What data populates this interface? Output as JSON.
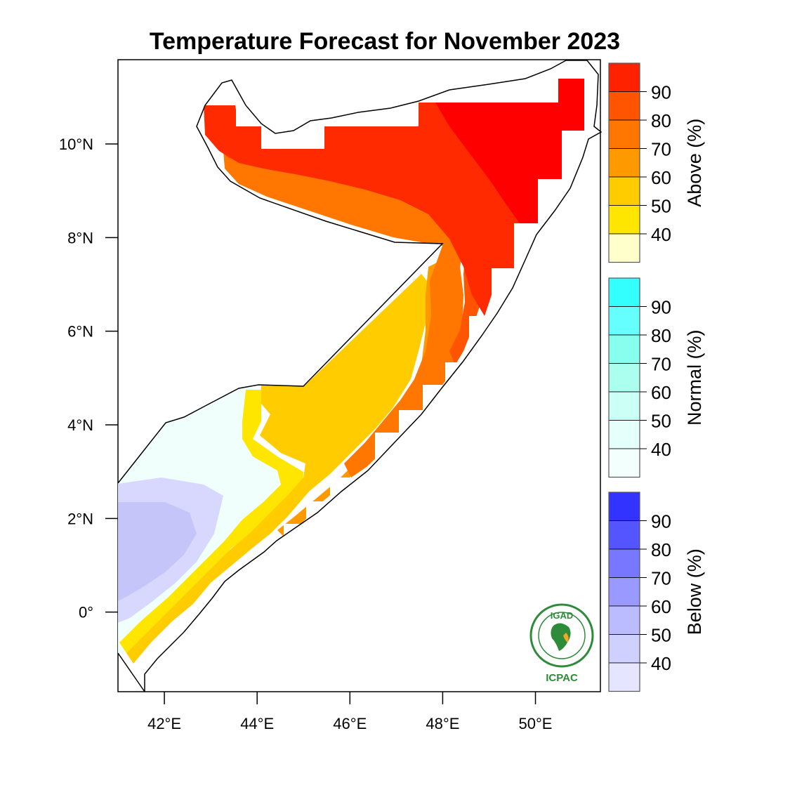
{
  "title": "Temperature Forecast for November 2023",
  "map": {
    "lon_range": [
      41.0,
      51.4
    ],
    "lat_range": [
      -1.7,
      11.8
    ],
    "lon_ticks": [
      "42°E",
      "44°E",
      "46°E",
      "48°E",
      "50°E"
    ],
    "lon_tick_values": [
      42,
      44,
      46,
      48,
      50
    ],
    "lat_ticks": [
      "10°N",
      "8°N",
      "6°N",
      "4°N",
      "2°N",
      "0°"
    ],
    "lat_tick_values": [
      10,
      8,
      6,
      4,
      2,
      0
    ],
    "regions": [
      {
        "category": "Above",
        "probability": "90"
      },
      {
        "category": "Above",
        "probability": "80"
      },
      {
        "category": "Above",
        "probability": "70"
      },
      {
        "category": "Above",
        "probability": "60"
      },
      {
        "category": "Above",
        "probability": "50"
      },
      {
        "category": "Above",
        "probability": "40"
      },
      {
        "category": "Normal",
        "probability": "40"
      },
      {
        "category": "Below",
        "probability": "40"
      },
      {
        "category": "Below",
        "probability": "50"
      }
    ]
  },
  "colorbars": [
    {
      "label": "Above (%)",
      "ticks": [
        "90",
        "80",
        "70",
        "60",
        "50",
        "40"
      ],
      "colors": [
        "#ff2200",
        "#ff5500",
        "#ff7700",
        "#ff9900",
        "#ffcc00",
        "#ffe600",
        "#ffffcc"
      ]
    },
    {
      "label": "Normal (%)",
      "ticks": [
        "90",
        "80",
        "70",
        "60",
        "50",
        "40"
      ],
      "colors": [
        "#33ffff",
        "#66ffff",
        "#88ffee",
        "#aaffee",
        "#ccfff5",
        "#e5fffa",
        "#f2fffc"
      ]
    },
    {
      "label": "Below (%)",
      "ticks": [
        "90",
        "80",
        "70",
        "60",
        "50",
        "40"
      ],
      "colors": [
        "#3333ff",
        "#5555ff",
        "#7777ff",
        "#9999ff",
        "#bbbbff",
        "#d0d0ff",
        "#e5e5ff"
      ]
    }
  ],
  "logo": {
    "acronym": "IGAD",
    "centre": "ICPAC"
  }
}
